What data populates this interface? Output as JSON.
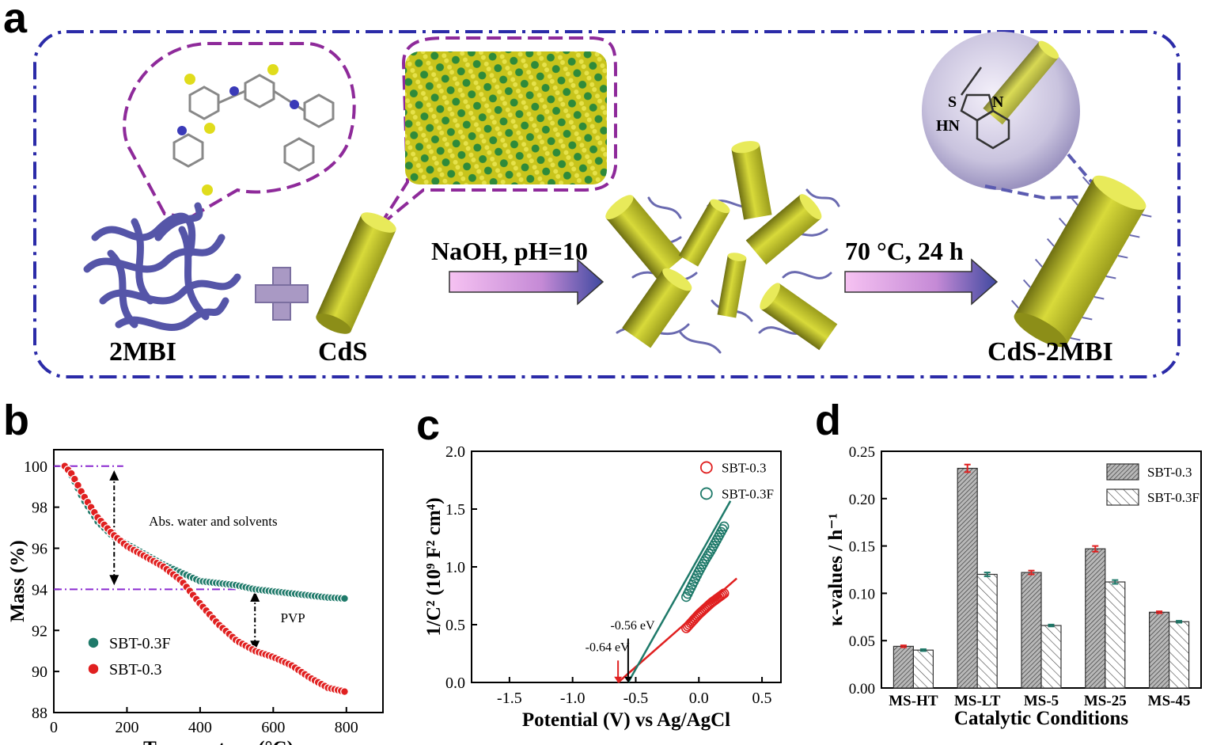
{
  "panels": {
    "a": "a",
    "b": "b",
    "c": "c",
    "d": "d"
  },
  "scheme": {
    "label_2mbi": "2MBI",
    "label_cds": "CdS",
    "label_product": "CdS-2MBI",
    "step1": "NaOH, pH=10",
    "step2": "70 °C, 24 h",
    "mol_s": "S",
    "mol_hn": "HN",
    "mol_n": "N",
    "colors": {
      "frame": "#2b2ba8",
      "rod": "#c9cc2e",
      "chain": "#5555a8",
      "bubble": "#8e2a9a",
      "arrow_start": "#f2b8ef",
      "arrow_end": "#3f49a0"
    }
  },
  "chart_data": [
    {
      "panel": "b",
      "type": "scatter",
      "xlabel": "Temperature (°C)",
      "ylabel": "Mass (%)",
      "xlim": [
        0,
        900
      ],
      "ylim": [
        88,
        100.8
      ],
      "xticks": [
        0,
        200,
        400,
        600,
        800
      ],
      "yticks": [
        88,
        90,
        92,
        94,
        96,
        98,
        100
      ],
      "legend": "bottom-left",
      "annotations": [
        "Abs. water and solvents",
        "PVP"
      ],
      "reference_lines": [
        100,
        94
      ],
      "series": [
        {
          "name": "SBT-0.3F",
          "color": "#1f7a6a",
          "x": [
            30,
            50,
            80,
            120,
            160,
            200,
            250,
            300,
            350,
            400,
            450,
            500,
            550,
            600,
            650,
            700,
            750,
            800
          ],
          "y": [
            100,
            99.5,
            98.4,
            97.3,
            96.6,
            96.2,
            95.7,
            95.2,
            94.8,
            94.4,
            94.3,
            94.2,
            94.0,
            93.9,
            93.8,
            93.7,
            93.6,
            93.55
          ]
        },
        {
          "name": "SBT-0.3",
          "color": "#e02020",
          "x": [
            30,
            50,
            80,
            120,
            160,
            200,
            250,
            300,
            350,
            400,
            450,
            500,
            550,
            600,
            650,
            700,
            750,
            800
          ],
          "y": [
            100,
            99.6,
            98.6,
            97.5,
            96.7,
            96.1,
            95.6,
            95.1,
            94.4,
            93.3,
            92.3,
            91.5,
            91.0,
            90.7,
            90.3,
            89.7,
            89.2,
            89.0
          ]
        }
      ]
    },
    {
      "panel": "c",
      "type": "scatter",
      "xlabel": "Potential (V) vs Ag/AgCl",
      "ylabel": "1/C² (10⁹ F² cm⁴)",
      "xlim": [
        -1.8,
        0.65
      ],
      "ylim": [
        0,
        2.0
      ],
      "xticks": [
        -1.5,
        -1.0,
        -0.5,
        0.0,
        0.5
      ],
      "yticks": [
        0.0,
        0.5,
        1.0,
        1.5,
        2.0
      ],
      "legend": "top-right",
      "annotations": [
        "-0.56 eV",
        "-0.64 eV"
      ],
      "intercepts": [
        -0.56,
        -0.64
      ],
      "series": [
        {
          "name": "SBT-0.3",
          "color": "#e02020",
          "x": [
            -0.1,
            -0.05,
            0.0,
            0.05,
            0.1,
            0.15,
            0.2
          ],
          "y": [
            0.47,
            0.53,
            0.59,
            0.64,
            0.69,
            0.73,
            0.77
          ],
          "fit": {
            "x": [
              -0.64,
              0.3
            ],
            "y": [
              0.0,
              0.9
            ]
          }
        },
        {
          "name": "SBT-0.3F",
          "color": "#1f7a6a",
          "x": [
            -0.1,
            -0.05,
            0.0,
            0.05,
            0.1,
            0.15,
            0.2
          ],
          "y": [
            0.74,
            0.85,
            0.96,
            1.06,
            1.15,
            1.25,
            1.35
          ],
          "fit": {
            "x": [
              -0.56,
              0.25
            ],
            "y": [
              0.0,
              1.57
            ]
          }
        }
      ]
    },
    {
      "panel": "d",
      "type": "bar",
      "xlabel": "Catalytic Conditions",
      "ylabel": "κ-values / h⁻¹",
      "ylim": [
        0,
        0.25
      ],
      "yticks": [
        0.0,
        0.05,
        0.1,
        0.15,
        0.2,
        0.25
      ],
      "categories": [
        "MS-HT",
        "MS-LT",
        "MS-5",
        "MS-25",
        "MS-45"
      ],
      "legend": "top-right",
      "series": [
        {
          "name": "SBT-0.3",
          "pattern": "dense-hatch",
          "error_color": "#e02020",
          "values": [
            0.044,
            0.232,
            0.122,
            0.147,
            0.08
          ],
          "errors": [
            0.001,
            0.004,
            0.002,
            0.003,
            0.001
          ]
        },
        {
          "name": "SBT-0.3F",
          "pattern": "sparse-hatch",
          "error_color": "#1f7a6a",
          "values": [
            0.04,
            0.12,
            0.066,
            0.112,
            0.07
          ],
          "errors": [
            0.001,
            0.002,
            0.001,
            0.002,
            0.001
          ]
        }
      ]
    }
  ]
}
